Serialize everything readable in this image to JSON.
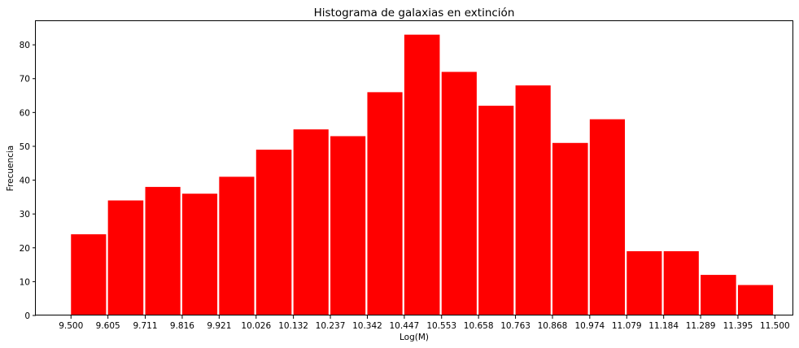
{
  "chart_data": {
    "type": "bar",
    "title": "Histograma de galaxias en extinción",
    "xlabel": "Log(M)",
    "ylabel": "Frecuencia",
    "bin_edges": [
      9.5,
      9.605,
      9.711,
      9.816,
      9.921,
      10.026,
      10.132,
      10.237,
      10.342,
      10.447,
      10.553,
      10.658,
      10.763,
      10.868,
      10.974,
      11.079,
      11.184,
      11.289,
      11.395,
      11.5
    ],
    "x_tick_labels": [
      "9.500",
      "9.605",
      "9.711",
      "9.816",
      "9.921",
      "10.026",
      "10.132",
      "10.237",
      "10.342",
      "10.447",
      "10.553",
      "10.658",
      "10.763",
      "10.868",
      "10.974",
      "11.079",
      "11.184",
      "11.289",
      "11.395",
      "11.500"
    ],
    "values": [
      24,
      34,
      38,
      36,
      41,
      49,
      55,
      53,
      66,
      83,
      72,
      62,
      68,
      51,
      58,
      19,
      19,
      12,
      9
    ],
    "y_ticks": [
      0,
      10,
      20,
      30,
      40,
      50,
      60,
      70,
      80
    ],
    "ylim": [
      0,
      87
    ],
    "xlim": [
      9.4,
      11.55
    ],
    "bar_color": "#ff0000",
    "grid": false,
    "legend": "none"
  }
}
